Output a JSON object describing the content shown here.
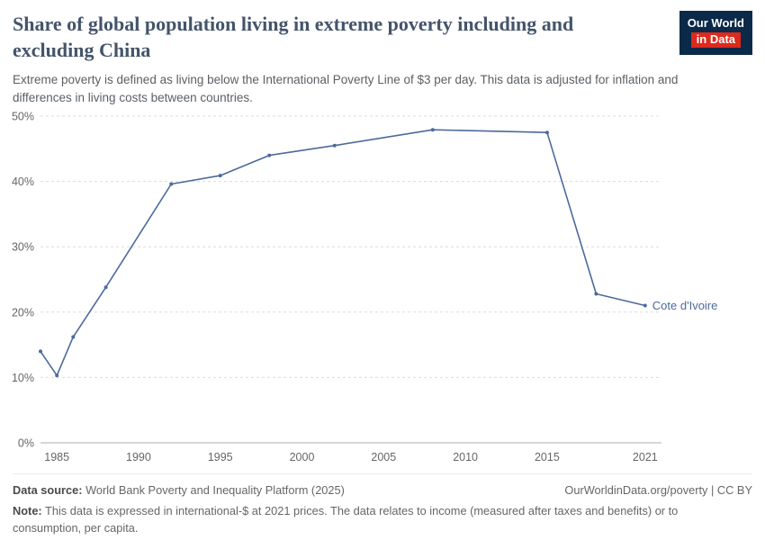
{
  "header": {
    "title": "Share of global population living in extreme poverty including and excluding China",
    "subtitle": "Extreme poverty is defined as living below the International Poverty Line of $3 per day. This data is adjusted for inflation and differences in living costs between countries.",
    "logo": {
      "line1": "Our World",
      "line2": "in Data"
    }
  },
  "chart_data": {
    "type": "line",
    "series_label": "Cote d'Ivoire",
    "x": [
      1984,
      1985,
      1986,
      1988,
      1992,
      1995,
      1998,
      2002,
      2008,
      2015,
      2018,
      2021
    ],
    "values": [
      14.0,
      10.3,
      16.2,
      23.8,
      39.6,
      40.9,
      44.0,
      45.5,
      47.9,
      47.5,
      22.8,
      21.0
    ],
    "x_ticks": [
      1985,
      1990,
      1995,
      2000,
      2005,
      2010,
      2015,
      2021
    ],
    "y_ticks": [
      0,
      10,
      20,
      30,
      40,
      50
    ],
    "y_tick_suffix": "%",
    "xlim": [
      1984,
      2022
    ],
    "ylim": [
      0,
      50
    ],
    "line_color": "#4C6A9C",
    "grid": "dashed horizontal gridlines, legend as end-of-line label"
  },
  "footer": {
    "datasource_label": "Data source:",
    "datasource_text": " World Bank Poverty and Inequality Platform (2025)",
    "link_text": "OurWorldinData.org/poverty | CC BY",
    "note_label": "Note:",
    "note_text": " This data is expressed in international-$ at 2021 prices. The data relates to income (measured after taxes and benefits) or to consumption, per capita."
  }
}
